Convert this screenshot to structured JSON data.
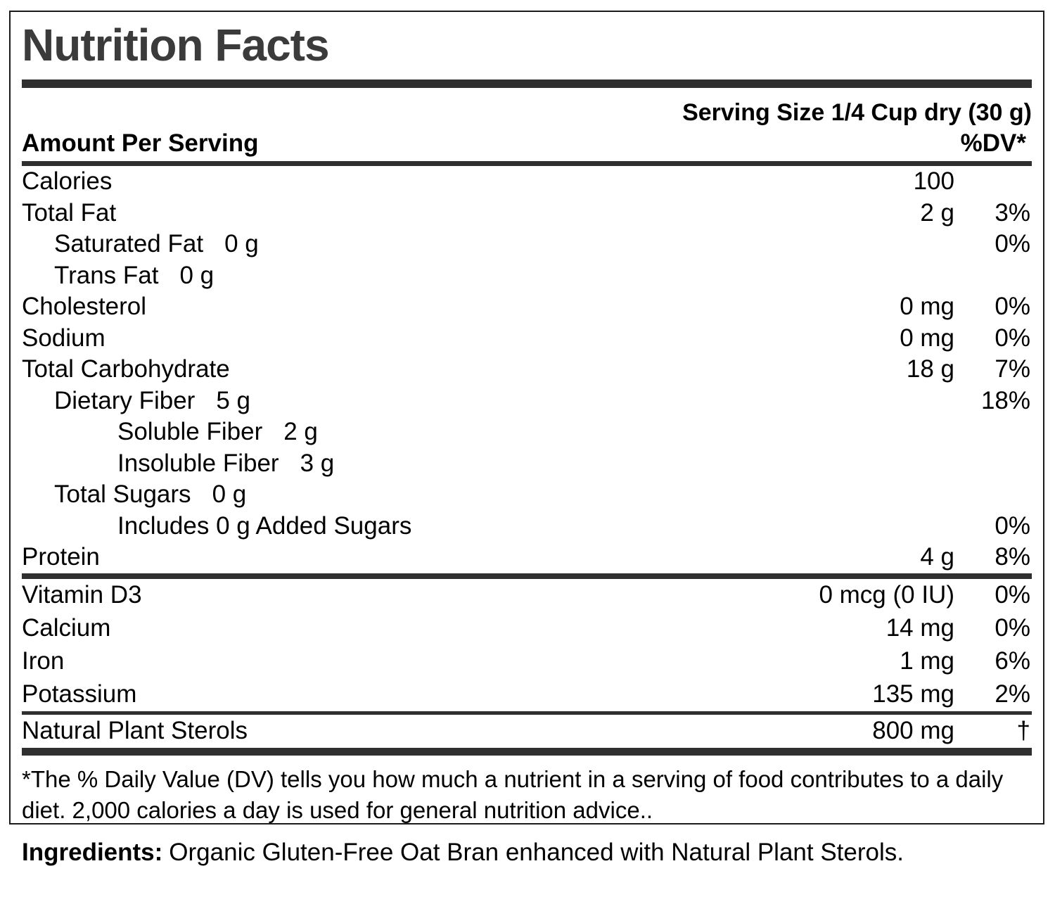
{
  "label": {
    "title": "Nutrition Facts",
    "serving_size": "Serving Size 1/4 Cup dry (30 g)",
    "header": {
      "amount_per_serving": "Amount Per Serving",
      "dv": "%DV*"
    },
    "rows": [
      {
        "label": "Calories",
        "inline": "",
        "amount": "100",
        "dv": ""
      },
      {
        "label": "Total Fat",
        "inline": "",
        "amount": "2 g",
        "dv": "3%"
      },
      {
        "label": "Saturated Fat",
        "inline": "0 g",
        "amount": "",
        "dv": "0%"
      },
      {
        "label": "Trans Fat",
        "inline": "0 g",
        "amount": "",
        "dv": ""
      },
      {
        "label": "Cholesterol",
        "inline": "",
        "amount": "0 mg",
        "dv": "0%"
      },
      {
        "label": "Sodium",
        "inline": "",
        "amount": "0 mg",
        "dv": "0%"
      },
      {
        "label": "Total Carbohydrate",
        "inline": "",
        "amount": "18 g",
        "dv": "7%"
      },
      {
        "label": "Dietary Fiber",
        "inline": "5 g",
        "amount": "",
        "dv": "18%"
      },
      {
        "label": "Soluble Fiber",
        "inline": "2 g",
        "amount": "",
        "dv": ""
      },
      {
        "label": "Insoluble Fiber",
        "inline": "3 g",
        "amount": "",
        "dv": ""
      },
      {
        "label": "Total Sugars",
        "inline": "0 g",
        "amount": "",
        "dv": ""
      },
      {
        "label": "Includes 0 g Added Sugars",
        "inline": "",
        "amount": "",
        "dv": "0%"
      },
      {
        "label": "Protein",
        "inline": "",
        "amount": "4 g",
        "dv": "8%"
      },
      {
        "label": "Vitamin D3",
        "inline": "",
        "amount": "0 mcg (0 IU)",
        "dv": "0%"
      },
      {
        "label": "Calcium",
        "inline": "",
        "amount": "14 mg",
        "dv": "0%"
      },
      {
        "label": "Iron",
        "inline": "",
        "amount": "1 mg",
        "dv": "6%"
      },
      {
        "label": "Potassium",
        "inline": "",
        "amount": "135 mg",
        "dv": "2%"
      },
      {
        "label": "Natural Plant Sterols",
        "inline": "",
        "amount": "800 mg",
        "dv": "†"
      }
    ],
    "footnote": {
      "line1": "*The % Daily Value (DV) tells you how much a nutrient in a serving of food contributes to a daily",
      "line2": "diet. 2,000 calories a day is used for general nutrition advice.."
    }
  },
  "ingredients": {
    "heading": "Ingredients:",
    "text": "Organic Gluten-Free Oat Bran enhanced with Natural Plant Sterols."
  },
  "colors": {
    "rule": "#2f2f2f",
    "title_text": "#3b3b3b",
    "body_text": "#000000",
    "border": "#1b1b1b",
    "background": "#ffffff"
  }
}
